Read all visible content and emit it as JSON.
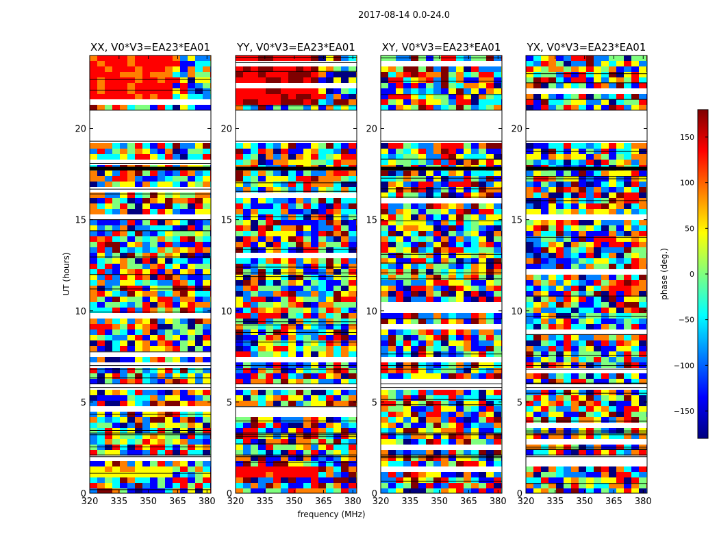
{
  "figure": {
    "suptitle": "2017-08-14 0.0-24.0"
  },
  "chart_data": {
    "type": "heatmap",
    "title": "2017-08-14 0.0-24.0",
    "xlabel": "frequency (MHz)",
    "ylabel": "UT (hours)",
    "xlim": [
      320,
      382
    ],
    "ylim": [
      0,
      24
    ],
    "x_ticks": [
      320,
      335,
      350,
      365,
      380
    ],
    "y_ticks": [
      0,
      5,
      10,
      15,
      20
    ],
    "colorbar": {
      "label": "phase (deg.)",
      "range": [
        -180,
        180
      ],
      "ticks": [
        150,
        100,
        50,
        0,
        -50,
        -100,
        -150
      ],
      "tick_labels": [
        "150",
        "100",
        "50",
        "0",
        "−50",
        "−100",
        "−150"
      ],
      "colormap": "jet",
      "colors": [
        "#00007f",
        "#0000ff",
        "#007fff",
        "#00ffff",
        "#7fff7f",
        "#ffff00",
        "#ff7f00",
        "#ff0000",
        "#7f0000"
      ]
    },
    "blank_intervals_hours": [
      [
        19.3,
        21.0
      ],
      [
        5.8,
        6.0
      ],
      [
        6.8,
        7.0
      ],
      [
        2.0,
        2.1
      ],
      [
        3.2,
        3.3
      ]
    ],
    "black_band_hours": [
      17.7,
      17.9
    ],
    "panels": [
      {
        "title": "XX, V0*V3=EA23*EA01",
        "pol": "XX",
        "top_band_phase_deg": 120,
        "low_band_phase_deg": 50
      },
      {
        "title": "YY, V0*V3=EA23*EA01",
        "pol": "YY",
        "top_band_phase_deg": 150,
        "low_band_phase_deg": 130
      },
      {
        "title": "XY, V0*V3=EA23*EA01",
        "pol": "XY",
        "top_band_phase_deg": null,
        "low_band_phase_deg": null
      },
      {
        "title": "YX, V0*V3=EA23*EA01",
        "pol": "YX",
        "top_band_phase_deg": null,
        "low_band_phase_deg": null
      }
    ]
  }
}
